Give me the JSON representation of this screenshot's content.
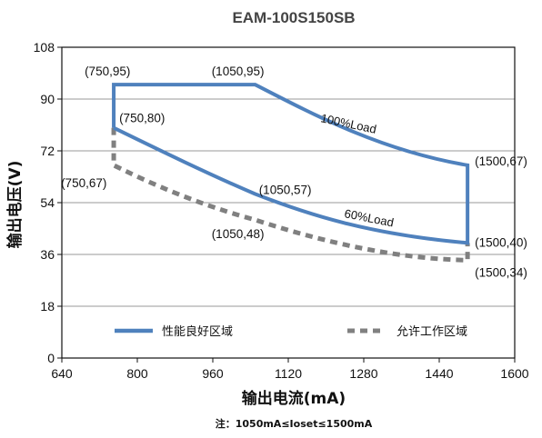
{
  "chart_data": {
    "type": "line",
    "title": "EAM-100S150SB",
    "xlabel": "输出电流(mA)",
    "ylabel": "输出电压(V)",
    "xlim": [
      640,
      1600
    ],
    "ylim": [
      0,
      108
    ],
    "xticks": [
      640,
      800,
      960,
      1120,
      1280,
      1440,
      1600
    ],
    "yticks": [
      0,
      18,
      36,
      54,
      72,
      90,
      108
    ],
    "grid": "horizontal",
    "series": [
      {
        "name": "性能良好区域",
        "color": "#4f81bd",
        "style": "solid",
        "points": [
          [
            750,
            80
          ],
          [
            750,
            95
          ],
          [
            1050,
            95
          ],
          [
            1200,
            82
          ],
          [
            1350,
            72
          ],
          [
            1500,
            67
          ],
          [
            1500,
            40
          ],
          [
            1300,
            45
          ],
          [
            1050,
            57
          ],
          [
            750,
            80
          ]
        ]
      },
      {
        "name": "允许工作区域",
        "color": "#808080",
        "style": "dashed",
        "points": [
          [
            750,
            80
          ],
          [
            750,
            67
          ],
          [
            900,
            56
          ],
          [
            1050,
            48
          ],
          [
            1250,
            38
          ],
          [
            1400,
            35
          ],
          [
            1500,
            34
          ],
          [
            1500,
            40
          ]
        ]
      }
    ],
    "annotations": [
      {
        "text": "(750,95)",
        "x": 750,
        "y": 95
      },
      {
        "text": "(1050,95)",
        "x": 1050,
        "y": 95
      },
      {
        "text": "(750,80)",
        "x": 750,
        "y": 80
      },
      {
        "text": "(750,67)",
        "x": 750,
        "y": 67
      },
      {
        "text": "(1050,57)",
        "x": 1050,
        "y": 57
      },
      {
        "text": "(1050,48)",
        "x": 1050,
        "y": 48
      },
      {
        "text": "(1500,67)",
        "x": 1500,
        "y": 67
      },
      {
        "text": "(1500,40)",
        "x": 1500,
        "y": 40
      },
      {
        "text": "(1500,34)",
        "x": 1500,
        "y": 34
      }
    ],
    "curve_labels": [
      "100%Load",
      "60%Load"
    ],
    "legend_position": "bottom",
    "note": "注：1050mA≤Ioset≤1500mA"
  }
}
